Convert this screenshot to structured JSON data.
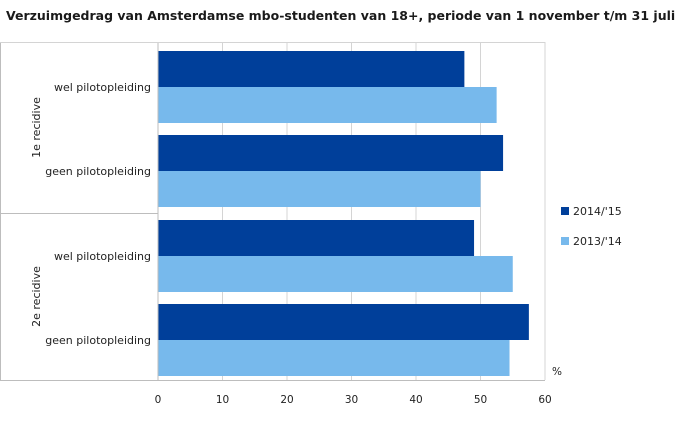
{
  "chart_data": {
    "type": "bar",
    "orientation": "horizontal",
    "title": "Verzuimgedrag van Amsterdamse mbo-studenten van 18+, periode van 1 november t/m 31 juli",
    "unit": "%",
    "xlim": [
      0,
      60
    ],
    "xticks": [
      0,
      10,
      20,
      30,
      40,
      50,
      60
    ],
    "grid": true,
    "legend_position": "right",
    "colors": {
      "2014/'15": "#003f9a",
      "2013/'14": "#77b9ec"
    },
    "groups": [
      {
        "name": "1e recidive",
        "categories": [
          {
            "label": "wel pilotopleiding",
            "values": {
              "2014/'15": 47.5,
              "2013/'14": 52.5
            }
          },
          {
            "label": "geen pilotopleiding",
            "values": {
              "2014/'15": 53.5,
              "2013/'14": 50
            }
          }
        ]
      },
      {
        "name": "2e recidive",
        "categories": [
          {
            "label": "wel pilotopleiding",
            "values": {
              "2014/'15": 49,
              "2013/'14": 55
            }
          },
          {
            "label": "geen pilotopleiding",
            "values": {
              "2014/'15": 57.5,
              "2013/'14": 54.5
            }
          }
        ]
      }
    ],
    "series": [
      {
        "name": "2014/'15",
        "color": "#003f9a"
      },
      {
        "name": "2013/'14",
        "color": "#77b9ec"
      }
    ]
  }
}
